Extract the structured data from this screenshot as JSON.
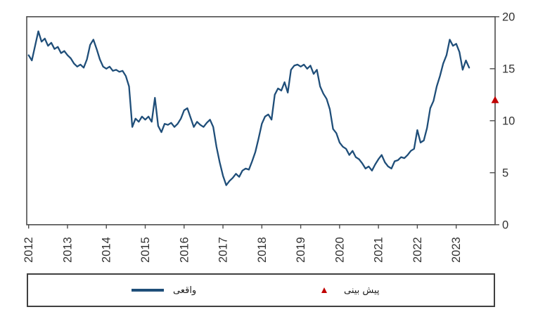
{
  "chart_data": {
    "type": "line",
    "title": "",
    "grid": false,
    "legend_position": "bottom",
    "x_axis": {
      "tick_labels": [
        "2012",
        "2013",
        "2014",
        "2015",
        "2016",
        "2017",
        "2018",
        "2019",
        "2020",
        "2021",
        "2022",
        "2023"
      ],
      "label_rotation_deg": -90
    },
    "y_axis": {
      "side": "right",
      "ticks": [
        0,
        5,
        10,
        15,
        20
      ],
      "range": [
        0,
        20
      ]
    },
    "series": [
      {
        "name": "واقعی",
        "kind": "line",
        "color": "#1f4e79",
        "start": "2012-01",
        "frequency": "monthly",
        "values": [
          16.3,
          15.8,
          17.2,
          18.6,
          17.6,
          17.9,
          17.2,
          17.5,
          16.9,
          17.1,
          16.5,
          16.7,
          16.3,
          16.0,
          15.5,
          15.2,
          15.4,
          15.1,
          15.9,
          17.3,
          17.8,
          16.9,
          15.9,
          15.2,
          15.0,
          15.2,
          14.8,
          14.9,
          14.7,
          14.8,
          14.3,
          13.3,
          9.4,
          10.2,
          9.9,
          10.4,
          10.1,
          10.4,
          9.9,
          12.2,
          9.5,
          8.9,
          9.7,
          9.6,
          9.8,
          9.4,
          9.7,
          10.2,
          11.0,
          11.2,
          10.3,
          9.4,
          9.9,
          9.6,
          9.4,
          9.8,
          10.1,
          9.4,
          7.5,
          6.0,
          4.7,
          3.8,
          4.2,
          4.5,
          4.9,
          4.6,
          5.2,
          5.4,
          5.3,
          6.1,
          7.0,
          8.3,
          9.7,
          10.4,
          10.6,
          10.1,
          12.5,
          13.1,
          12.9,
          13.7,
          12.7,
          14.9,
          15.3,
          15.4,
          15.2,
          15.4,
          15.0,
          15.3,
          14.5,
          14.9,
          13.3,
          12.6,
          12.1,
          11.1,
          9.2,
          8.8,
          7.9,
          7.5,
          7.3,
          6.7,
          7.1,
          6.5,
          6.3,
          5.9,
          5.4,
          5.6,
          5.2,
          5.8,
          6.3,
          6.7,
          6.0,
          5.6,
          5.4,
          6.1,
          6.2,
          6.5,
          6.4,
          6.7,
          7.1,
          7.3,
          9.1,
          7.9,
          8.1,
          9.3,
          11.2,
          11.9,
          13.3,
          14.3,
          15.5,
          16.3,
          17.8,
          17.2,
          17.4,
          16.6,
          14.9,
          15.8,
          15.1
        ]
      },
      {
        "name": "پیش بینی",
        "kind": "point",
        "marker": "triangle-up",
        "color": "#c00000",
        "value": 12,
        "position": "right-edge"
      }
    ]
  },
  "colors": {
    "line": "#1f4e79",
    "forecast_marker": "#c00000",
    "axis": "#4d4d4d",
    "tick_label": "#333333",
    "background": "#ffffff"
  }
}
